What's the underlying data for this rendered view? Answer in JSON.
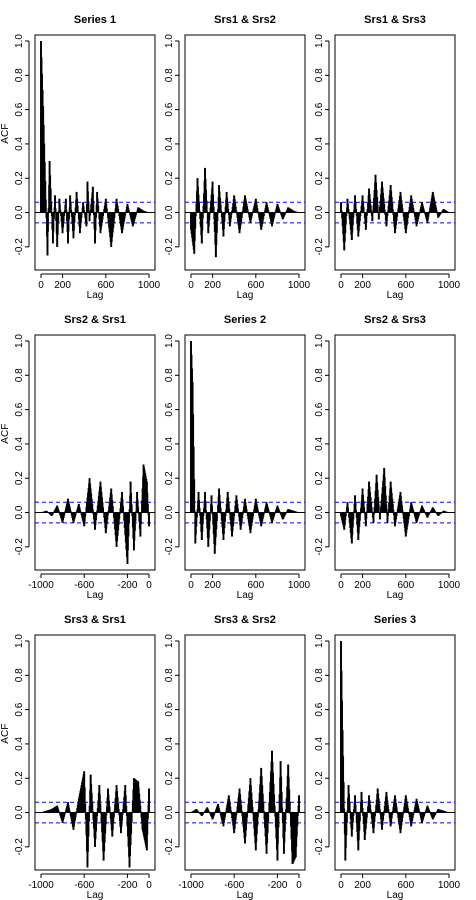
{
  "figure": {
    "panels": [
      {
        "title": "Series 1",
        "xlabel": "Lag",
        "ylabel": "ACF",
        "show_ylabel": true
      },
      {
        "title": "Srs1 & Srs2",
        "xlabel": "Lag",
        "ylabel": "",
        "show_ylabel": false
      },
      {
        "title": "Srs1 & Srs3",
        "xlabel": "Lag",
        "ylabel": "",
        "show_ylabel": false
      },
      {
        "title": "Srs2 & Srs1",
        "xlabel": "Lag",
        "ylabel": "ACF",
        "show_ylabel": true
      },
      {
        "title": "Series 2",
        "xlabel": "Lag",
        "ylabel": "",
        "show_ylabel": false
      },
      {
        "title": "Srs2 & Srs3",
        "xlabel": "Lag",
        "ylabel": "",
        "show_ylabel": false
      },
      {
        "title": "Srs3 & Srs1",
        "xlabel": "Lag",
        "ylabel": "ACF",
        "show_ylabel": true
      },
      {
        "title": "Srs3 & Srs2",
        "xlabel": "Lag",
        "ylabel": "",
        "show_ylabel": false
      },
      {
        "title": "Series 3",
        "xlabel": "Lag",
        "ylabel": "",
        "show_ylabel": false
      }
    ]
  },
  "chart_data": [
    {
      "type": "bar",
      "title": "Series 1",
      "xlabel": "Lag",
      "ylabel": "ACF",
      "xlim": [
        0,
        1000
      ],
      "ylim": [
        -0.3,
        1.0
      ],
      "x_ticks": [
        "0",
        "200",
        "600",
        "1000"
      ],
      "y_ticks": [
        "-0.2",
        "0.0",
        "0.2",
        "0.4",
        "0.6",
        "0.8",
        "1.0"
      ],
      "confidence_band": 0.06,
      "max_lag": 1000,
      "spike_start_lag": 0,
      "spike_spacing": 5,
      "x": [
        0,
        20,
        60,
        80,
        110,
        130,
        150,
        170,
        200,
        230,
        250,
        270,
        300,
        330,
        360,
        390,
        420,
        430,
        450,
        480,
        500,
        520,
        550,
        600,
        650,
        700,
        750,
        800,
        850,
        900,
        950,
        1000
      ],
      "y": [
        1.0,
        0.62,
        -0.25,
        0.3,
        -0.18,
        0.1,
        -0.2,
        0.08,
        -0.12,
        0.08,
        -0.18,
        0.1,
        -0.15,
        0.12,
        -0.12,
        0.06,
        -0.08,
        0.18,
        -0.05,
        0.15,
        -0.18,
        0.12,
        -0.12,
        0.08,
        -0.2,
        0.08,
        -0.12,
        0.05,
        -0.08,
        0.03,
        0.01,
        0.0
      ]
    },
    {
      "type": "bar",
      "title": "Srs1 & Srs2",
      "xlabel": "Lag",
      "ylabel": "",
      "xlim": [
        0,
        1000
      ],
      "ylim": [
        -0.3,
        1.0
      ],
      "x_ticks": [
        "0",
        "200",
        "600",
        "1000"
      ],
      "y_ticks": [
        "-0.2",
        "0.0",
        "0.2",
        "0.4",
        "0.6",
        "0.8",
        "1.0"
      ],
      "confidence_band": 0.06,
      "max_lag": 1000,
      "spike_start_lag": 0,
      "spike_spacing": 5,
      "x": [
        0,
        30,
        60,
        100,
        130,
        160,
        200,
        230,
        260,
        300,
        330,
        360,
        400,
        450,
        500,
        550,
        600,
        650,
        700,
        750,
        800,
        850,
        900,
        950,
        1000
      ],
      "y": [
        -0.1,
        -0.24,
        0.2,
        -0.18,
        0.26,
        -0.12,
        0.18,
        -0.26,
        0.16,
        -0.14,
        0.12,
        -0.08,
        0.1,
        -0.12,
        0.1,
        -0.06,
        0.08,
        -0.1,
        0.06,
        -0.08,
        0.05,
        -0.04,
        0.03,
        0.01,
        0.0
      ]
    },
    {
      "type": "bar",
      "title": "Srs1 & Srs3",
      "xlabel": "Lag",
      "ylabel": "",
      "xlim": [
        0,
        1000
      ],
      "ylim": [
        -0.3,
        1.0
      ],
      "x_ticks": [
        "0",
        "200",
        "600",
        "1000"
      ],
      "y_ticks": [
        "-0.2",
        "0.0",
        "0.2",
        "0.4",
        "0.6",
        "0.8",
        "1.0"
      ],
      "confidence_band": 0.06,
      "max_lag": 1000,
      "spike_start_lag": 0,
      "spike_spacing": 5,
      "x": [
        0,
        30,
        60,
        100,
        130,
        160,
        200,
        230,
        260,
        290,
        320,
        350,
        380,
        420,
        460,
        500,
        550,
        600,
        650,
        700,
        750,
        800,
        850,
        900,
        950,
        1000
      ],
      "y": [
        0.06,
        -0.22,
        0.08,
        -0.16,
        0.1,
        -0.14,
        0.1,
        -0.1,
        0.14,
        -0.05,
        0.22,
        -0.04,
        0.18,
        -0.08,
        0.16,
        -0.12,
        0.12,
        -0.12,
        0.1,
        -0.08,
        0.06,
        -0.06,
        0.12,
        -0.03,
        0.02,
        0.0
      ]
    },
    {
      "type": "bar",
      "title": "Srs2 & Srs1",
      "xlabel": "Lag",
      "ylabel": "ACF",
      "xlim": [
        -1000,
        0
      ],
      "ylim": [
        -0.3,
        1.0
      ],
      "x_ticks": [
        "-1000",
        "-600",
        "-200",
        "0"
      ],
      "y_ticks": [
        "-0.2",
        "0.0",
        "0.2",
        "0.4",
        "0.6",
        "0.8",
        "1.0"
      ],
      "confidence_band": 0.06,
      "max_lag": 1000,
      "spike_start_lag": -1000,
      "spike_spacing": 5,
      "x": [
        -1000,
        -950,
        -900,
        -850,
        -800,
        -750,
        -700,
        -650,
        -600,
        -550,
        -500,
        -450,
        -400,
        -350,
        -300,
        -250,
        -200,
        -170,
        -140,
        -110,
        -80,
        -50,
        -20,
        0
      ],
      "y": [
        0.0,
        0.01,
        -0.02,
        0.04,
        -0.06,
        0.08,
        -0.06,
        0.05,
        -0.08,
        0.2,
        -0.1,
        0.18,
        -0.12,
        0.14,
        -0.2,
        0.12,
        -0.3,
        0.18,
        -0.22,
        0.12,
        -0.14,
        0.28,
        0.18,
        -0.08
      ]
    },
    {
      "type": "bar",
      "title": "Series 2",
      "xlabel": "Lag",
      "ylabel": "",
      "xlim": [
        0,
        1000
      ],
      "ylim": [
        -0.3,
        1.0
      ],
      "x_ticks": [
        "0",
        "200",
        "600",
        "1000"
      ],
      "y_ticks": [
        "-0.2",
        "0.0",
        "0.2",
        "0.4",
        "0.6",
        "0.8",
        "1.0"
      ],
      "confidence_band": 0.06,
      "max_lag": 1000,
      "spike_start_lag": 0,
      "spike_spacing": 5,
      "x": [
        0,
        15,
        40,
        70,
        100,
        130,
        160,
        190,
        220,
        260,
        300,
        340,
        380,
        420,
        460,
        500,
        550,
        600,
        650,
        700,
        750,
        800,
        850,
        900,
        950,
        1000
      ],
      "y": [
        1.0,
        0.76,
        -0.18,
        0.12,
        -0.16,
        0.12,
        -0.2,
        0.1,
        -0.24,
        0.14,
        -0.16,
        0.12,
        -0.14,
        0.1,
        -0.1,
        0.08,
        -0.12,
        0.08,
        -0.08,
        0.06,
        -0.06,
        0.04,
        -0.04,
        0.02,
        0.01,
        0.0
      ]
    },
    {
      "type": "bar",
      "title": "Srs2 & Srs3",
      "xlabel": "Lag",
      "ylabel": "",
      "xlim": [
        0,
        1000
      ],
      "ylim": [
        -0.3,
        1.0
      ],
      "x_ticks": [
        "0",
        "200",
        "600",
        "1000"
      ],
      "y_ticks": [
        "-0.2",
        "0.0",
        "0.2",
        "0.4",
        "0.6",
        "0.8",
        "1.0"
      ],
      "confidence_band": 0.06,
      "max_lag": 1000,
      "spike_start_lag": 0,
      "spike_spacing": 5,
      "x": [
        0,
        30,
        60,
        100,
        130,
        160,
        200,
        230,
        260,
        300,
        330,
        360,
        400,
        430,
        460,
        500,
        550,
        600,
        650,
        700,
        750,
        800,
        850,
        900,
        950,
        1000
      ],
      "y": [
        -0.02,
        -0.1,
        0.06,
        -0.18,
        0.1,
        -0.16,
        0.14,
        -0.08,
        0.18,
        -0.06,
        0.22,
        -0.04,
        0.26,
        -0.06,
        0.18,
        -0.08,
        0.12,
        -0.14,
        0.06,
        -0.06,
        0.04,
        -0.03,
        0.03,
        -0.02,
        0.01,
        0.0
      ]
    },
    {
      "type": "bar",
      "title": "Srs3 & Srs1",
      "xlabel": "Lag",
      "ylabel": "ACF",
      "xlim": [
        -1000,
        0
      ],
      "ylim": [
        -0.3,
        1.0
      ],
      "x_ticks": [
        "-1000",
        "-600",
        "-200",
        "0"
      ],
      "y_ticks": [
        "-0.2",
        "0.0",
        "0.2",
        "0.4",
        "0.6",
        "0.8",
        "1.0"
      ],
      "confidence_band": 0.06,
      "max_lag": 1000,
      "spike_start_lag": -1000,
      "spike_spacing": 5,
      "x": [
        -1000,
        -950,
        -900,
        -850,
        -800,
        -750,
        -700,
        -650,
        -600,
        -570,
        -540,
        -500,
        -460,
        -420,
        -380,
        -340,
        -300,
        -260,
        -220,
        -180,
        -140,
        -100,
        -60,
        -20,
        0
      ],
      "y": [
        0.0,
        0.01,
        0.02,
        0.04,
        -0.06,
        0.06,
        -0.1,
        0.08,
        0.24,
        -0.32,
        0.22,
        -0.2,
        0.16,
        -0.28,
        0.14,
        -0.14,
        0.16,
        -0.12,
        0.16,
        -0.32,
        0.2,
        0.18,
        -0.1,
        -0.22,
        0.14
      ]
    },
    {
      "type": "bar",
      "title": "Srs3 & Srs2",
      "xlabel": "Lag",
      "ylabel": "",
      "xlim": [
        -1000,
        0
      ],
      "ylim": [
        -0.3,
        1.0
      ],
      "x_ticks": [
        "-1000",
        "-600",
        "-200",
        "0"
      ],
      "y_ticks": [
        "-0.2",
        "0.0",
        "0.2",
        "0.4",
        "0.6",
        "0.8",
        "1.0"
      ],
      "confidence_band": 0.06,
      "max_lag": 1000,
      "spike_start_lag": -1000,
      "spike_spacing": 5,
      "x": [
        -1000,
        -950,
        -900,
        -850,
        -800,
        -750,
        -700,
        -650,
        -600,
        -550,
        -500,
        -450,
        -400,
        -350,
        -300,
        -250,
        -200,
        -170,
        -140,
        -100,
        -60,
        -30,
        0
      ],
      "y": [
        0.0,
        0.02,
        -0.02,
        0.03,
        -0.04,
        0.05,
        -0.08,
        0.1,
        -0.12,
        0.14,
        -0.18,
        0.2,
        -0.22,
        0.26,
        -0.24,
        0.36,
        -0.28,
        0.3,
        -0.24,
        0.28,
        -0.3,
        -0.26,
        0.1
      ]
    },
    {
      "type": "bar",
      "title": "Series 3",
      "xlabel": "Lag",
      "ylabel": "",
      "xlim": [
        0,
        1000
      ],
      "ylim": [
        -0.3,
        1.0
      ],
      "x_ticks": [
        "0",
        "200",
        "600",
        "1000"
      ],
      "y_ticks": [
        "-0.2",
        "0.0",
        "0.2",
        "0.4",
        "0.6",
        "0.8",
        "1.0"
      ],
      "confidence_band": 0.06,
      "max_lag": 1000,
      "spike_start_lag": 0,
      "spike_spacing": 5,
      "x": [
        0,
        15,
        40,
        70,
        100,
        130,
        160,
        190,
        220,
        260,
        300,
        340,
        380,
        420,
        460,
        500,
        550,
        600,
        650,
        700,
        750,
        800,
        850,
        900,
        950,
        1000
      ],
      "y": [
        1.0,
        0.48,
        -0.28,
        0.16,
        -0.14,
        0.1,
        -0.22,
        0.12,
        -0.16,
        0.1,
        -0.12,
        0.14,
        -0.1,
        0.12,
        -0.08,
        0.1,
        -0.12,
        0.1,
        -0.08,
        0.08,
        -0.06,
        0.04,
        -0.04,
        0.02,
        0.01,
        0.0
      ]
    }
  ],
  "colors": {
    "bars": "#000000",
    "confidence": "#0000ff",
    "axes": "#000000",
    "background": "#ffffff"
  }
}
